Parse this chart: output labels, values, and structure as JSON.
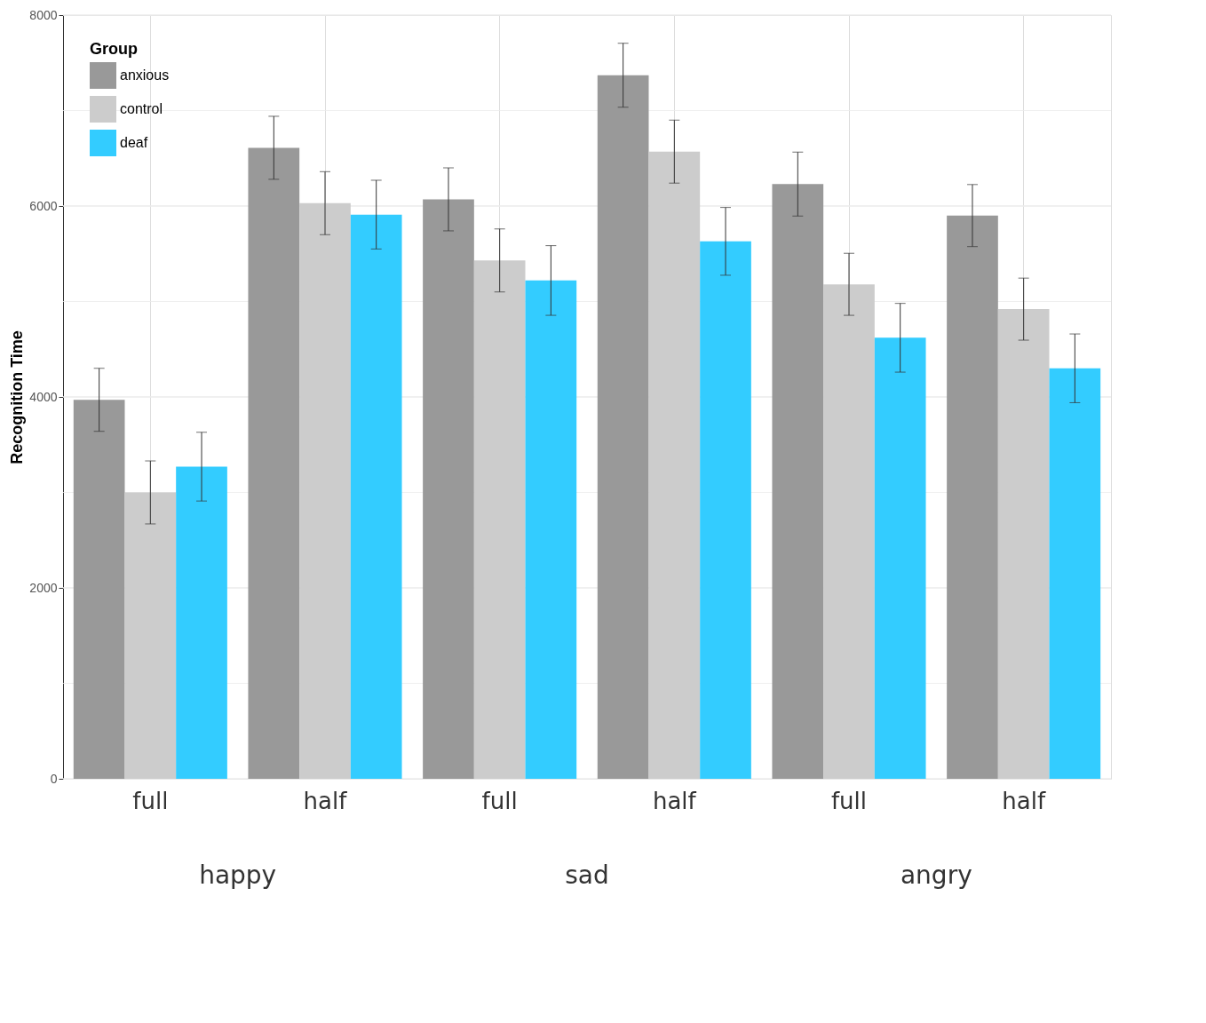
{
  "chart_data": {
    "type": "bar",
    "ylabel": "Recognition Time",
    "legend_title": "Group",
    "categories": [
      "full",
      "half",
      "full",
      "half",
      "full",
      "half"
    ],
    "annotations": [
      "happy",
      "sad",
      "angry"
    ],
    "series": [
      {
        "name": "anxious",
        "color": "#999999",
        "values": [
          3970,
          6610,
          6070,
          7370,
          6230,
          5900
        ],
        "errors": [
          330,
          330,
          330,
          335,
          335,
          325
        ]
      },
      {
        "name": "control",
        "color": "#cccccc",
        "values": [
          3000,
          6030,
          5430,
          6570,
          5180,
          4920
        ],
        "errors": [
          330,
          330,
          330,
          330,
          325,
          325
        ]
      },
      {
        "name": "deaf",
        "color": "#33ccff",
        "values": [
          3270,
          5910,
          5220,
          5630,
          4620,
          4300
        ],
        "errors": [
          360,
          360,
          365,
          355,
          360,
          360
        ]
      }
    ],
    "ylim": [
      0,
      8000
    ],
    "yticks": [
      0,
      2000,
      4000,
      6000,
      8000
    ],
    "grid": true,
    "legend": "top left"
  }
}
